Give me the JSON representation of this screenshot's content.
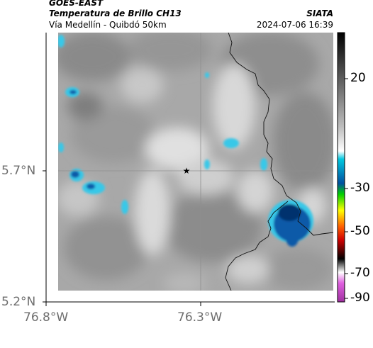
{
  "header": {
    "satellite": "GOES-EAST",
    "product": "Temperatura de Brillo CH13",
    "region": "Vía Medellín - Quibdó 50km",
    "organization": "SIATA",
    "timestamp": "2024-07-06 16:39"
  },
  "map": {
    "lat_ticks": [
      "5.7°N",
      "5.2°N"
    ],
    "lon_ticks": [
      "76.8°W",
      "76.3°W"
    ],
    "marker_icon": "star-icon"
  },
  "colorbar": {
    "ticks": [
      "20",
      "-30",
      "-50",
      "-70",
      "-90"
    ]
  },
  "colors": {
    "cold_cloud_cyan": "#38c8e8",
    "cold_cloud_blue": "#0a5aa8",
    "deep_cloud_navy": "#06306e",
    "cloud_gray": "#8c8c8c",
    "clear_white": "#f2f2f2"
  }
}
